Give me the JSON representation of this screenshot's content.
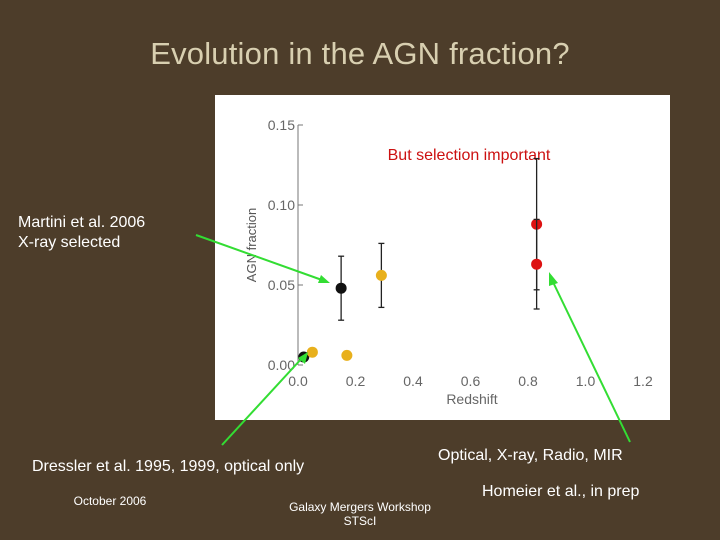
{
  "title": "Evolution in the AGN fraction?",
  "annotations": {
    "martini_line1": "Martini et al. 2006",
    "martini_line2": "X-ray selected",
    "dressler": "Dressler et al. 1995, 1999, optical only",
    "multiwave": "Optical, X-ray, Radio, MIR",
    "homeier": "Homeier et al., in prep"
  },
  "footer": {
    "date": "October 2006",
    "workshop_line1": "Galaxy Mergers Workshop",
    "workshop_line2": "STScI"
  },
  "colors": {
    "background": "#4d3d2a",
    "title": "#d8cfb0",
    "arrow": "#33dd33",
    "martini": "#111111",
    "dressler": "#e8b01c",
    "homeier": "#dd1111",
    "note": "#cc1111"
  },
  "chart_data": {
    "type": "scatter",
    "title": "",
    "note": "But selection important",
    "xlabel": "Redshift",
    "ylabel": "AGN fraction",
    "xlim": [
      0.0,
      1.2
    ],
    "ylim": [
      0.0,
      0.15
    ],
    "xticks": [
      "0.0",
      "0.2",
      "0.4",
      "0.6",
      "0.8",
      "1.0",
      "1.2"
    ],
    "yticks": [
      "0.00",
      "0.05",
      "0.10",
      "0.15"
    ],
    "series": [
      {
        "name": "Martini et al. 2006",
        "color": "#111111",
        "points": [
          {
            "x": 0.02,
            "y": 0.005,
            "yerr": 0
          },
          {
            "x": 0.15,
            "y": 0.048,
            "yerr": 0.02
          }
        ]
      },
      {
        "name": "Dressler et al. 1995, 1999",
        "color": "#e8b01c",
        "points": [
          {
            "x": 0.05,
            "y": 0.008,
            "yerr": 0
          },
          {
            "x": 0.17,
            "y": 0.006,
            "yerr": 0
          },
          {
            "x": 0.29,
            "y": 0.056,
            "yerr": 0.02
          }
        ]
      },
      {
        "name": "Homeier et al., in prep",
        "color": "#dd1111",
        "points": [
          {
            "x": 0.83,
            "y": 0.088,
            "yerr": 0.041
          },
          {
            "x": 0.83,
            "y": 0.063,
            "yerr": 0.028
          }
        ]
      }
    ]
  }
}
